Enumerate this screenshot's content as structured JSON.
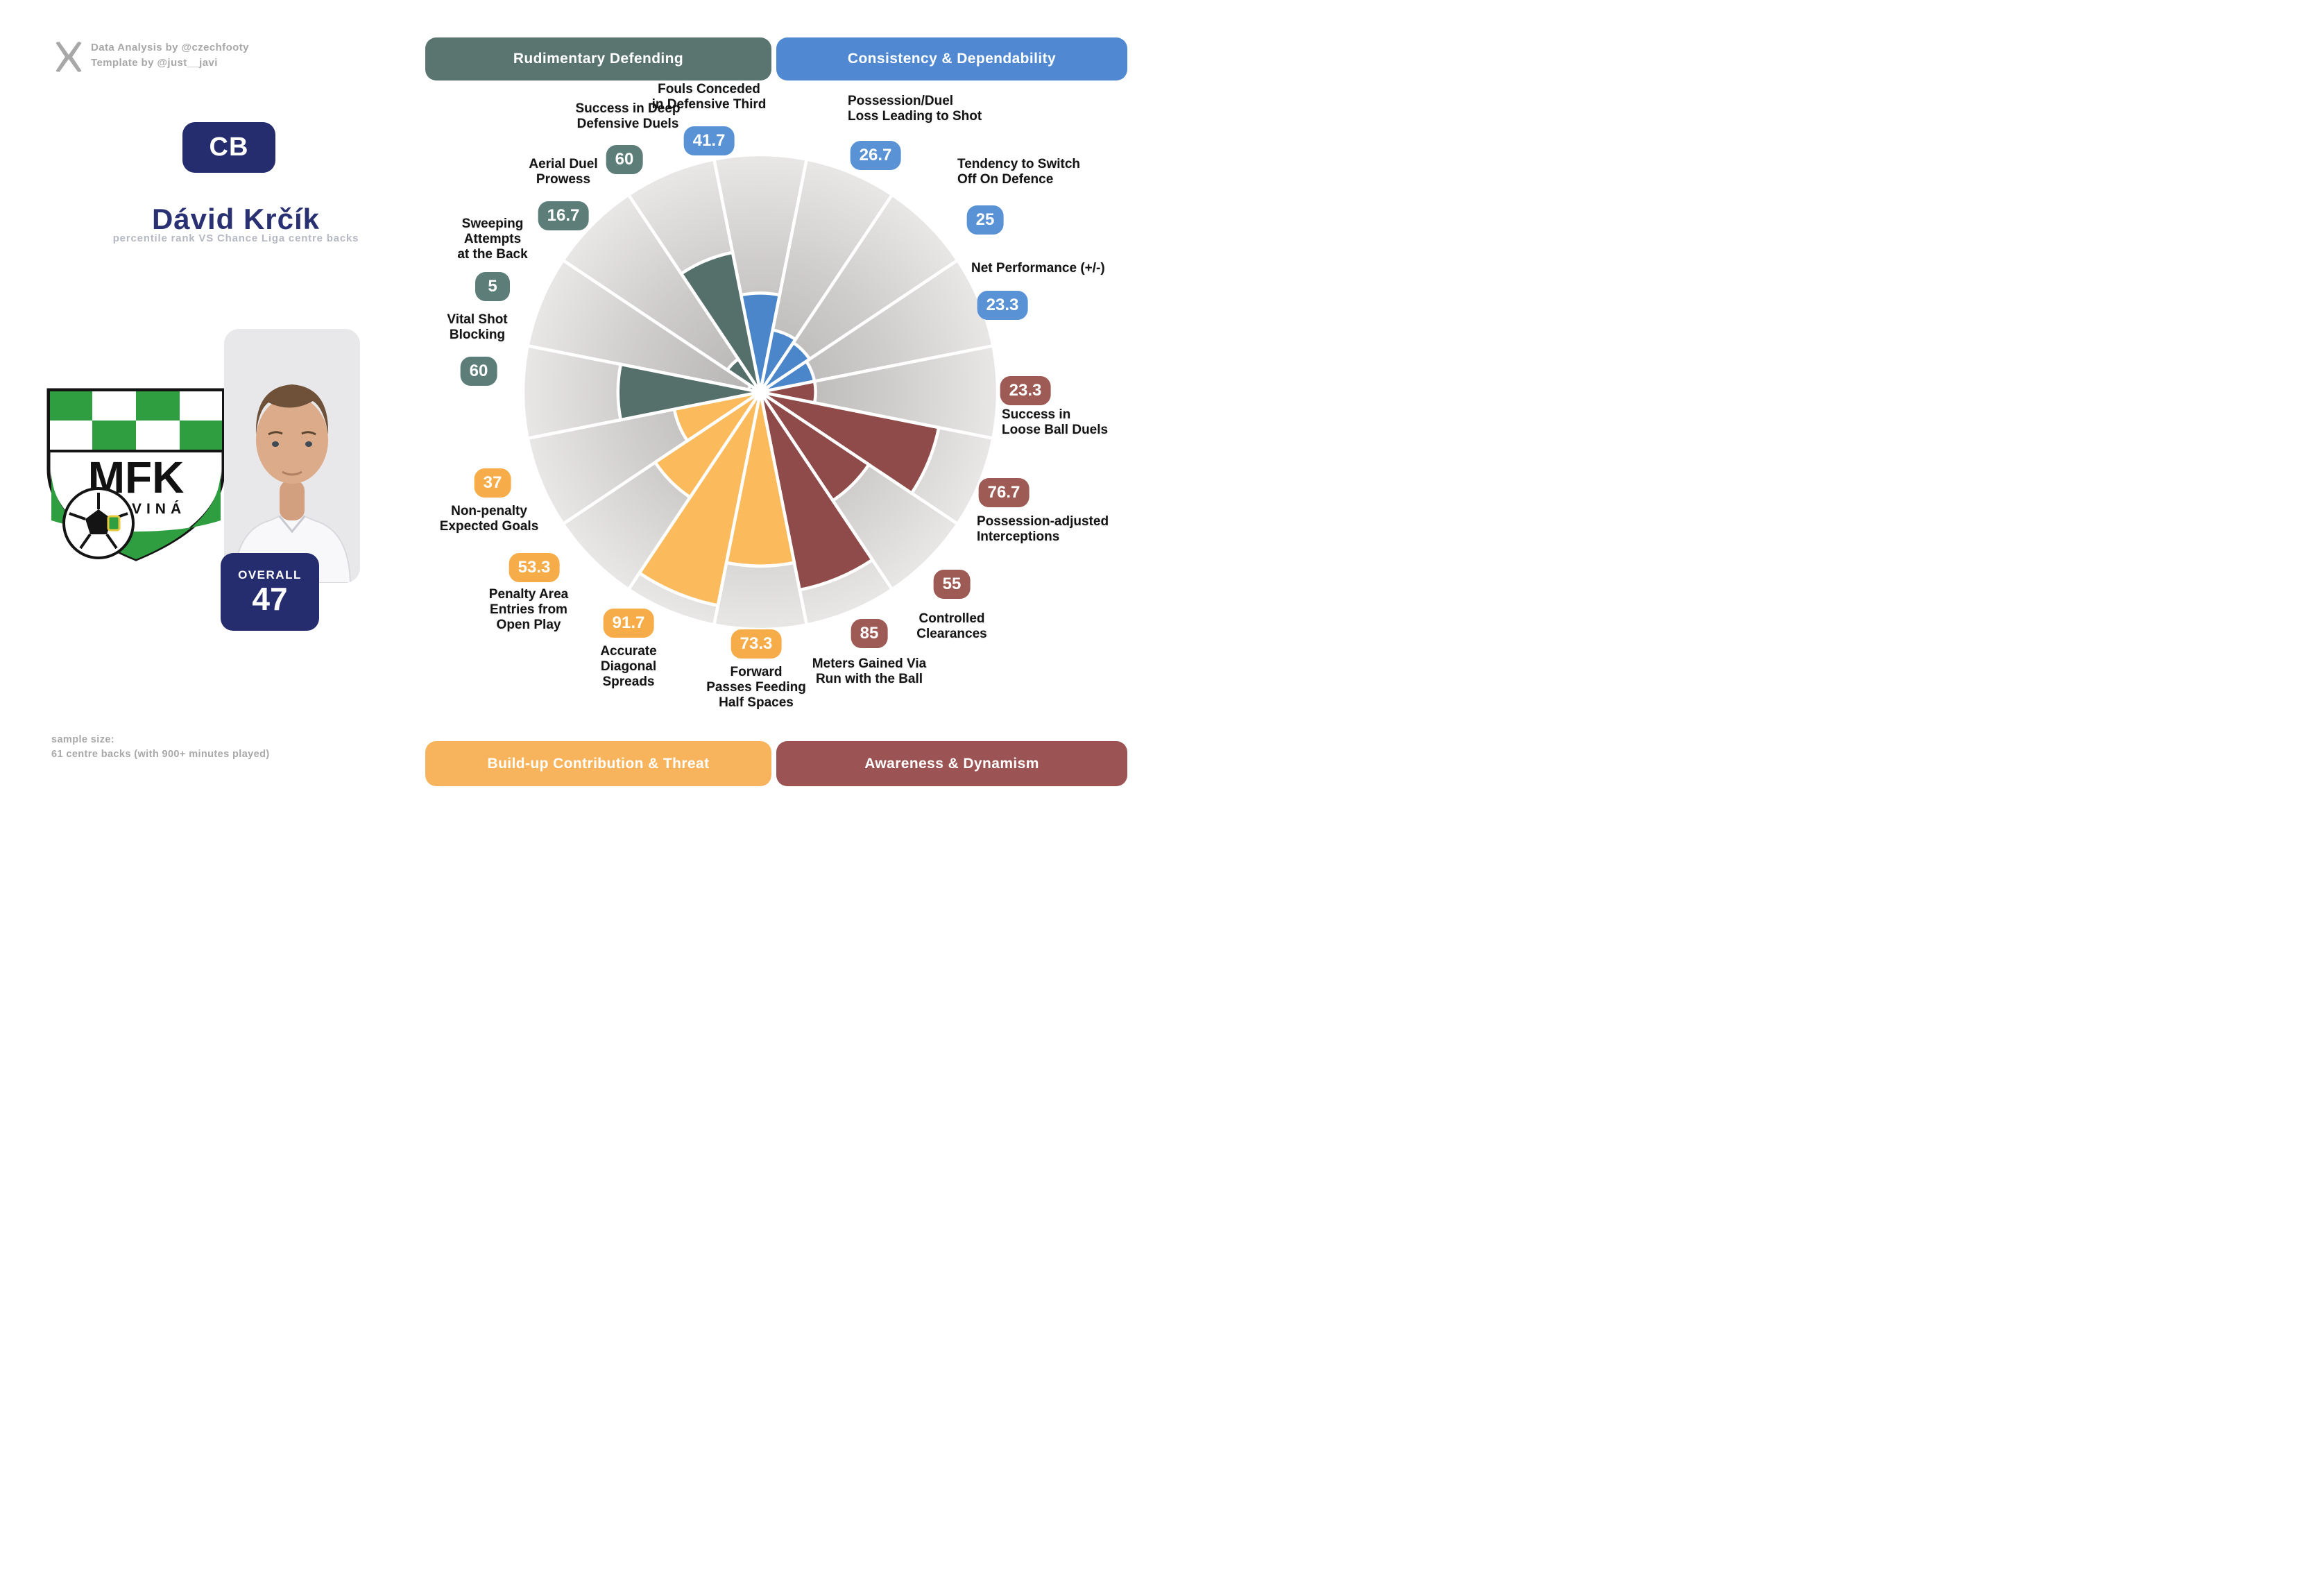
{
  "credits": {
    "line1": "Data Analysis by @czechfooty",
    "line2": "Template by @just__javi",
    "logo": "x-twitter-logo"
  },
  "player": {
    "position_badge": "CB",
    "name": "Dávid Krčík",
    "subtitle": "percentile rank VS Chance Liga centre backs",
    "overall_label": "OVERALL",
    "overall_value": "47",
    "club": {
      "initials": "MFK",
      "city": "KARVINÁ",
      "green": "#2f9e41"
    }
  },
  "sample": {
    "line1": "sample size:",
    "line2": "61 centre backs (with 900+ minutes played)"
  },
  "chart_data": {
    "type": "bar",
    "variant": "polar-pizza-percentile",
    "axis_range": [
      0,
      100
    ],
    "start_angle_deg": -11.25,
    "slice_angle_deg": 22.5,
    "grid": "off",
    "categories": [
      {
        "label": "Rudimentary Defending",
        "header_color": "#5a7470",
        "slice_color": "#556f6b",
        "badge_color": "#5d7d79"
      },
      {
        "label": "Consistency & Dependability",
        "header_color": "#5089d2",
        "slice_color": "#4b86cb",
        "badge_color": "#5a92d6"
      },
      {
        "label": "Build-up Contribution & Threat",
        "header_color": "#f8b45c",
        "slice_color": "#fbba5c",
        "badge_color": "#f6ad49"
      },
      {
        "label": "Awareness & Dynamism",
        "header_color": "#9b5353",
        "slice_color": "#8f4b49",
        "badge_color": "#9e5a54"
      }
    ],
    "slices": [
      {
        "label_lines": [
          "Fouls Conceded",
          "in Defensive Third"
        ],
        "value": 41.7,
        "display": "41.7",
        "category": 1
      },
      {
        "label_lines": [
          "Possession/Duel",
          "Loss Leading to Shot"
        ],
        "value": 26.7,
        "display": "26.7",
        "category": 1
      },
      {
        "label_lines": [
          "Tendency to Switch",
          "Off On Defence"
        ],
        "value": 25,
        "display": "25",
        "category": 1
      },
      {
        "label_lines": [
          "Net Performance (+/-)"
        ],
        "value": 23.3,
        "display": "23.3",
        "category": 1
      },
      {
        "label_lines": [
          "Success in",
          "Loose Ball Duels"
        ],
        "value": 23.3,
        "display": "23.3",
        "category": 3
      },
      {
        "label_lines": [
          "Possession-adjusted",
          "Interceptions"
        ],
        "value": 76.7,
        "display": "76.7",
        "category": 3
      },
      {
        "label_lines": [
          "Controlled",
          "Clearances"
        ],
        "value": 55,
        "display": "55",
        "category": 3
      },
      {
        "label_lines": [
          "Meters Gained Via",
          "Run with the Ball"
        ],
        "value": 85,
        "display": "85",
        "category": 3
      },
      {
        "label_lines": [
          "Forward",
          "Passes Feeding",
          "Half Spaces"
        ],
        "value": 73.3,
        "display": "73.3",
        "category": 2
      },
      {
        "label_lines": [
          "Accurate",
          "Diagonal",
          "Spreads"
        ],
        "value": 91.7,
        "display": "91.7",
        "category": 2
      },
      {
        "label_lines": [
          "Penalty Area",
          "Entries from",
          "Open Play"
        ],
        "value": 53.3,
        "display": "53.3",
        "category": 2
      },
      {
        "label_lines": [
          "Non-penalty",
          "Expected Goals"
        ],
        "value": 37,
        "display": "37",
        "category": 2
      },
      {
        "label_lines": [
          "Vital Shot",
          "Blocking"
        ],
        "value": 60,
        "display": "60",
        "category": 0
      },
      {
        "label_lines": [
          "Sweeping",
          "Attempts",
          "at the Back"
        ],
        "value": 5,
        "display": "5",
        "category": 0
      },
      {
        "label_lines": [
          "Aerial Duel",
          "Prowess"
        ],
        "value": 16.7,
        "display": "16.7",
        "category": 0
      },
      {
        "label_lines": [
          "Success in Deep",
          "Defensive Duels"
        ],
        "value": 60,
        "display": "60",
        "category": 0
      }
    ]
  }
}
